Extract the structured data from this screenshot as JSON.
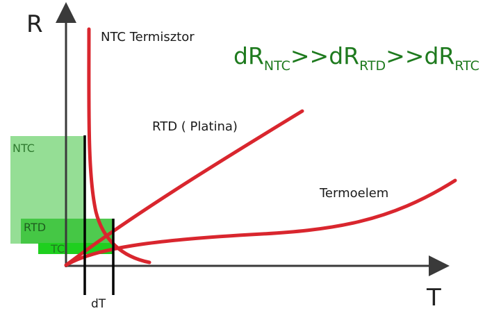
{
  "axes": {
    "y_label": "R",
    "x_label": "T"
  },
  "curves": {
    "ntc_label": "NTC Termisztor",
    "rtd_label": "RTD ( Platina)",
    "tc_label": "Termoelem"
  },
  "boxes": {
    "ntc": "NTC",
    "rtd": "RTD",
    "tc": "TC"
  },
  "interval_label": "dT",
  "formula": {
    "d1": "dR",
    "sub1": "NTC",
    "sep1": ">>",
    "d2": "dR",
    "sub2": "RTD",
    "sep2": ">>",
    "d3": "dR",
    "sub3": "RTC"
  },
  "colors": {
    "curve": "#d9262e",
    "box_ntc": "#8fdc8f",
    "box_rtd": "#3cc43c",
    "box_tc": "#1fcf1f",
    "formula": "#1e7a1e",
    "axis": "#3a3a3a"
  }
}
